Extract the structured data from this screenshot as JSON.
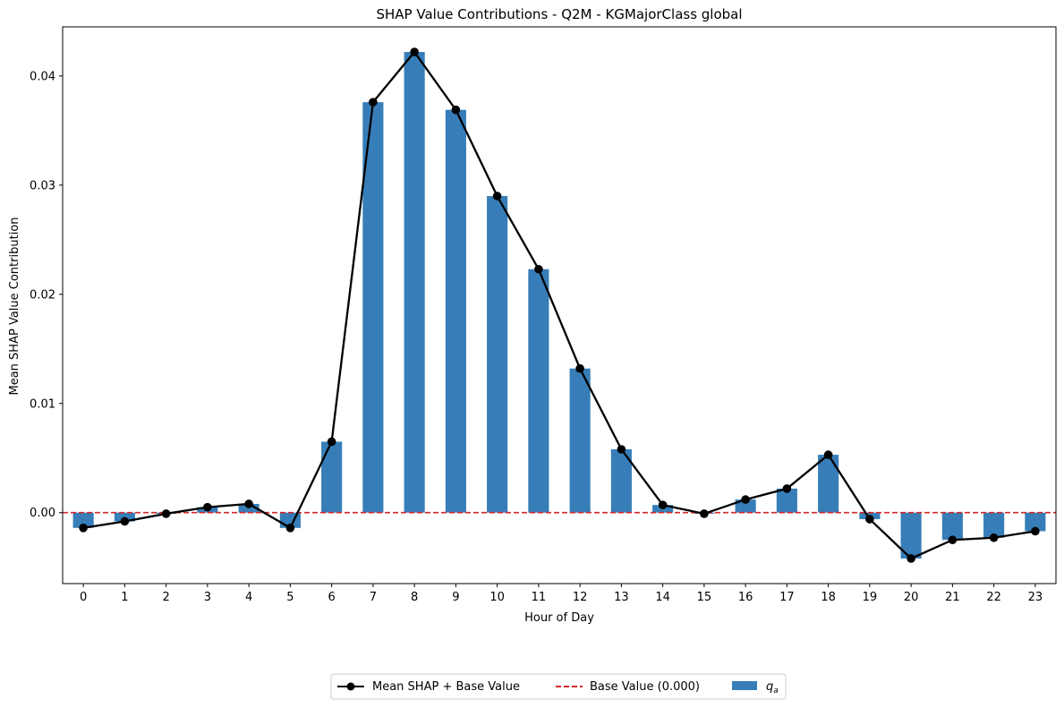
{
  "chart_data": {
    "type": "bar",
    "title": "SHAP Value Contributions - Q2M - KGMajorClass global",
    "xlabel": "Hour of Day",
    "ylabel": "Mean SHAP Value Contribution",
    "categories": [
      "0",
      "1",
      "2",
      "3",
      "4",
      "5",
      "6",
      "7",
      "8",
      "9",
      "10",
      "11",
      "12",
      "13",
      "14",
      "15",
      "16",
      "17",
      "18",
      "19",
      "20",
      "21",
      "22",
      "23"
    ],
    "ylim": [
      -0.0065,
      0.0445
    ],
    "yticks": [
      "0.00",
      "0.01",
      "0.02",
      "0.03",
      "0.04"
    ],
    "ytick_values": [
      0.0,
      0.01,
      0.02,
      0.03,
      0.04
    ],
    "grid": false,
    "legend_position": "bottom-center",
    "series": [
      {
        "name": "Mean SHAP + Base Value",
        "kind": "line",
        "color": "#000000",
        "marker": "circle",
        "values": [
          -0.0014,
          -0.0008,
          -0.0001,
          0.0005,
          0.0008,
          -0.0014,
          0.0065,
          0.0376,
          0.0422,
          0.0369,
          0.029,
          0.0223,
          0.0132,
          0.0058,
          0.0007,
          -0.0001,
          0.0012,
          0.0022,
          0.0053,
          -0.0006,
          -0.0042,
          -0.0025,
          -0.0023,
          -0.0017
        ]
      },
      {
        "name": "Base Value (0.000)",
        "kind": "hline",
        "color": "#d62728",
        "style": "dashed",
        "value": 0.0
      },
      {
        "name": "q",
        "name_sub": "a",
        "kind": "bar",
        "color": "#377eb8",
        "values": [
          -0.0014,
          -0.0008,
          -0.0001,
          0.0005,
          0.0008,
          -0.0014,
          0.0065,
          0.0376,
          0.0422,
          0.0369,
          0.029,
          0.0223,
          0.0132,
          0.0058,
          0.0007,
          -0.0001,
          0.0012,
          0.0022,
          0.0053,
          -0.0006,
          -0.0042,
          -0.0025,
          -0.0023,
          -0.0017
        ]
      }
    ]
  }
}
